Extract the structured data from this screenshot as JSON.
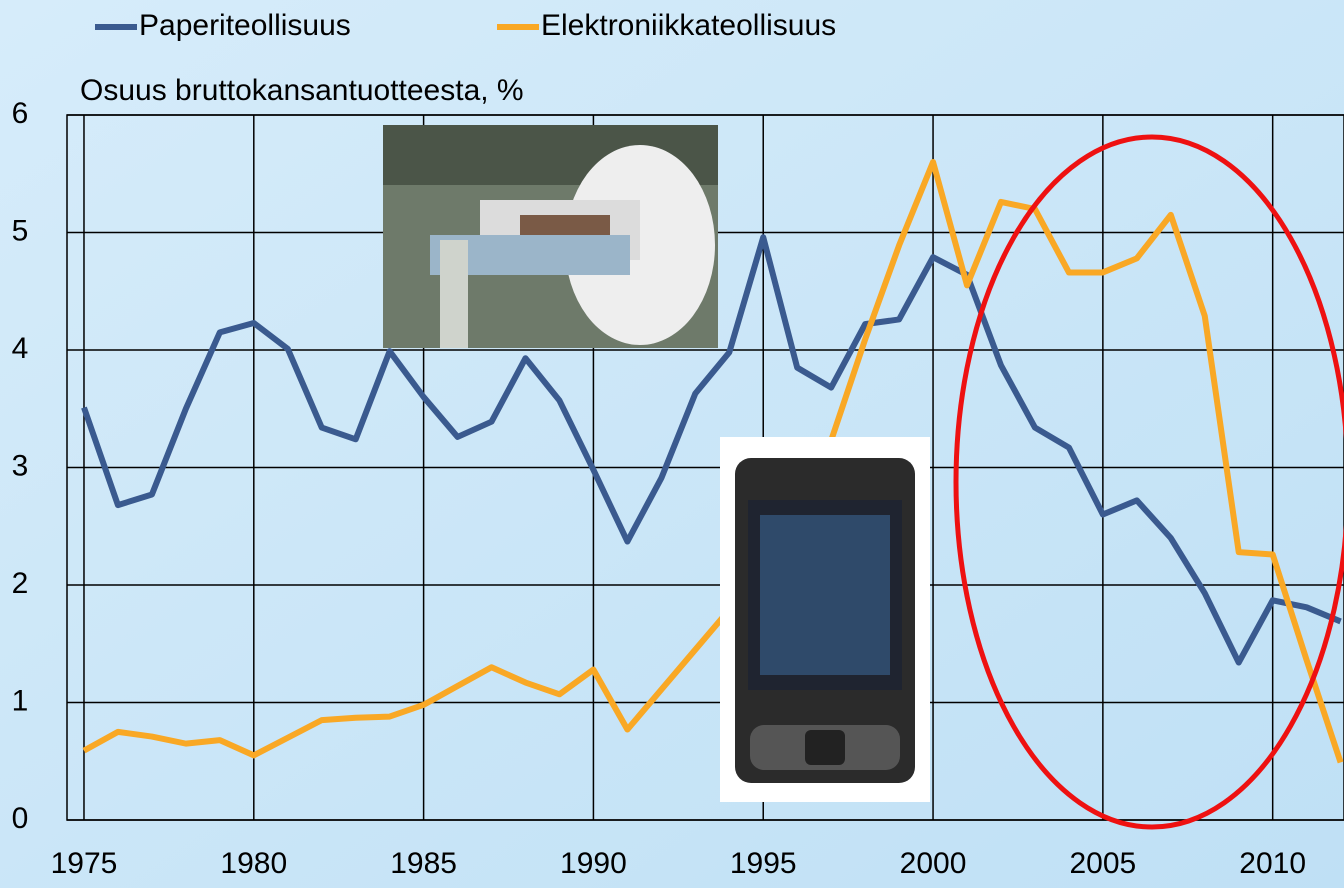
{
  "chart_data": {
    "type": "line",
    "y_label": "Osuus bruttokansantuotteesta, %",
    "x": [
      1975,
      1976,
      1977,
      1978,
      1979,
      1980,
      1981,
      1982,
      1983,
      1984,
      1985,
      1986,
      1987,
      1988,
      1989,
      1990,
      1991,
      1992,
      1993,
      1994,
      1995,
      1996,
      1997,
      1998,
      1999,
      2000,
      2001,
      2002,
      2003,
      2004,
      2005,
      2006,
      2007,
      2008,
      2009,
      2010,
      2011,
      2012
    ],
    "series": [
      {
        "name": "Paperiteollisuus",
        "color": "#3a5a8f",
        "values": [
          3.51,
          2.68,
          2.77,
          3.5,
          4.15,
          4.23,
          4.01,
          3.34,
          3.24,
          3.99,
          3.6,
          3.26,
          3.39,
          3.93,
          3.57,
          2.98,
          2.37,
          2.91,
          3.63,
          3.98,
          4.96,
          3.85,
          3.68,
          4.22,
          4.26,
          4.79,
          4.64,
          3.87,
          3.34,
          3.17,
          2.6,
          2.72,
          2.4,
          1.93,
          1.34,
          1.87,
          1.81,
          1.69
        ]
      },
      {
        "name": "Elektroniikkateollisuus",
        "color": "#f9a825",
        "values": [
          0.59,
          0.75,
          0.71,
          0.65,
          0.68,
          0.55,
          0.7,
          0.85,
          0.87,
          0.88,
          0.98,
          1.14,
          1.3,
          1.17,
          1.07,
          1.28,
          0.77,
          1.11,
          1.45,
          1.79,
          2.3,
          2.8,
          3.23,
          4.09,
          4.89,
          5.6,
          4.55,
          5.26,
          5.2,
          4.66,
          4.66,
          4.78,
          5.15,
          4.29,
          2.28,
          2.26,
          1.36,
          0.49
        ]
      }
    ],
    "xlim": [
      1974.5,
      2012.1
    ],
    "xticks": [
      1975,
      1980,
      1985,
      1990,
      1995,
      2000,
      2005,
      2010
    ],
    "ylim": [
      0,
      6
    ],
    "yticks": [
      0,
      1,
      2,
      3,
      4,
      5,
      6
    ],
    "grid": true
  }
}
